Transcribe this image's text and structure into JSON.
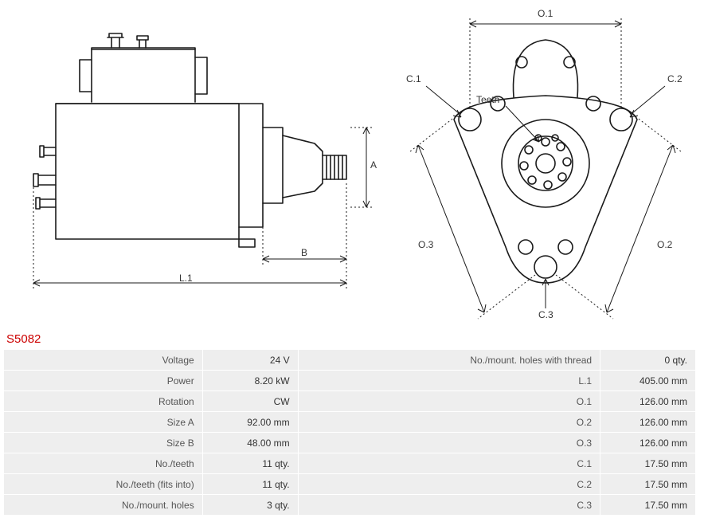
{
  "part_id": "S5082",
  "diagram": {
    "stroke_color": "#1a1a1a",
    "stroke_width": 1.5,
    "dim_stroke": "#1a1a1a",
    "dim_dash": "2,3",
    "labels": {
      "A": "A",
      "B": "B",
      "L1": "L.1",
      "O1": "O.1",
      "O2": "O.2",
      "O3": "O.3",
      "C1": "C.1",
      "C2": "C.2",
      "C3": "C.3",
      "Teeth": "Teeth"
    }
  },
  "specs_left": [
    {
      "label": "Voltage",
      "value": "24 V"
    },
    {
      "label": "Power",
      "value": "8.20 kW"
    },
    {
      "label": "Rotation",
      "value": "CW"
    },
    {
      "label": "Size A",
      "value": "92.00 mm"
    },
    {
      "label": "Size B",
      "value": "48.00 mm"
    },
    {
      "label": "No./teeth",
      "value": "11 qty."
    },
    {
      "label": "No./teeth (fits into)",
      "value": "11 qty."
    },
    {
      "label": "No./mount. holes",
      "value": "3 qty."
    }
  ],
  "specs_right": [
    {
      "label": "No./mount. holes with thread",
      "value": "0 qty."
    },
    {
      "label": "L.1",
      "value": "405.00 mm"
    },
    {
      "label": "O.1",
      "value": "126.00 mm"
    },
    {
      "label": "O.2",
      "value": "126.00 mm"
    },
    {
      "label": "O.3",
      "value": "126.00 mm"
    },
    {
      "label": "C.1",
      "value": "17.50 mm"
    },
    {
      "label": "C.2",
      "value": "17.50 mm"
    },
    {
      "label": "C.3",
      "value": "17.50 mm"
    }
  ],
  "colors": {
    "title": "#cc0000",
    "row_bg": "#eeeeee",
    "row_border": "#ffffff"
  }
}
